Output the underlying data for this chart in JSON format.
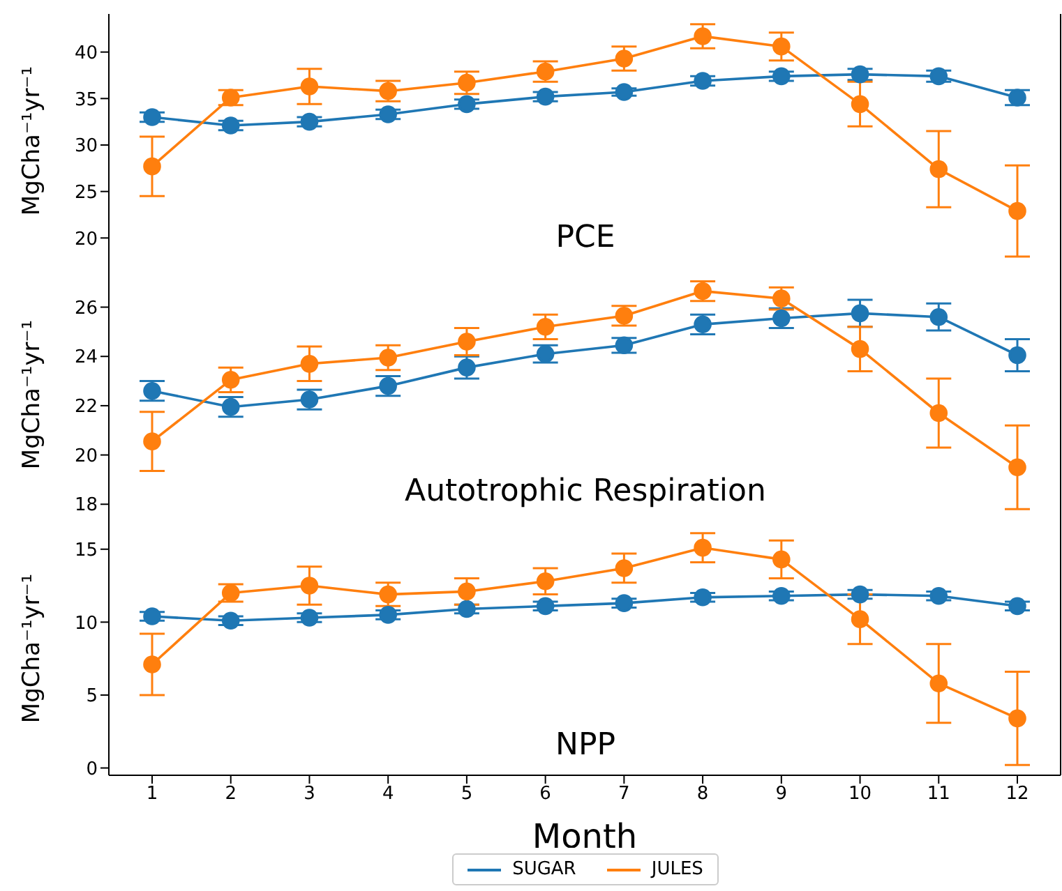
{
  "chart_data": [
    {
      "type": "line",
      "title": "PCE",
      "ylabel": "MgCha⁻¹yr⁻¹",
      "x": [
        1,
        2,
        3,
        4,
        5,
        6,
        7,
        8,
        9,
        10,
        11,
        12
      ],
      "xlim": [
        0.45,
        12.55
      ],
      "xticks": [
        1,
        2,
        3,
        4,
        5,
        6,
        7,
        8,
        9,
        10,
        11,
        12
      ],
      "ylim": [
        16.8,
        44.1
      ],
      "yticks": [
        20,
        25,
        30,
        35,
        40
      ],
      "tick_labels": "y",
      "marker": "circle",
      "line_style": "solid",
      "grid": false,
      "legend": false,
      "series": [
        {
          "color": "#1f77b4",
          "values": [
            33.0,
            32.1,
            32.5,
            33.3,
            34.4,
            35.2,
            35.7,
            36.9,
            37.4,
            37.6,
            37.4,
            35.1
          ],
          "errors": [
            0.5,
            0.5,
            0.5,
            0.5,
            0.5,
            0.5,
            0.4,
            0.5,
            0.5,
            0.6,
            0.6,
            0.8
          ]
        },
        {
          "color": "#ff7f0e",
          "values": [
            27.7,
            35.1,
            36.3,
            35.8,
            36.7,
            37.9,
            39.3,
            41.7,
            40.6,
            34.4,
            27.4,
            22.9
          ],
          "errors": [
            3.2,
            0.8,
            1.9,
            1.1,
            1.2,
            1.1,
            1.3,
            1.3,
            1.5,
            2.4,
            4.1,
            4.9
          ]
        }
      ]
    },
    {
      "type": "line",
      "title": "Autotrophic Respiration",
      "ylabel": "MgCha⁻¹yr⁻¹",
      "x": [
        1,
        2,
        3,
        4,
        5,
        6,
        7,
        8,
        9,
        10,
        11,
        12
      ],
      "xlim": [
        0.45,
        12.55
      ],
      "xticks": [
        1,
        2,
        3,
        4,
        5,
        6,
        7,
        8,
        9,
        10,
        11,
        12
      ],
      "ylim": [
        17.3,
        27.6
      ],
      "yticks": [
        18,
        20,
        22,
        24,
        26
      ],
      "tick_labels": "y",
      "marker": "circle",
      "line_style": "solid",
      "grid": false,
      "legend": false,
      "series": [
        {
          "color": "#1f77b4",
          "values": [
            22.6,
            21.95,
            22.25,
            22.8,
            23.55,
            24.1,
            24.45,
            25.3,
            25.55,
            25.75,
            25.6,
            24.05
          ],
          "errors": [
            0.4,
            0.4,
            0.4,
            0.4,
            0.45,
            0.35,
            0.3,
            0.4,
            0.4,
            0.55,
            0.55,
            0.65
          ]
        },
        {
          "color": "#ff7f0e",
          "values": [
            20.55,
            23.05,
            23.7,
            23.95,
            24.6,
            25.2,
            25.65,
            26.65,
            26.35,
            24.3,
            21.7,
            19.5
          ],
          "errors": [
            1.2,
            0.5,
            0.7,
            0.5,
            0.55,
            0.5,
            0.4,
            0.4,
            0.45,
            0.9,
            1.4,
            1.7
          ]
        }
      ]
    },
    {
      "type": "line",
      "title": "NPP",
      "xlabel": "Month",
      "ylabel": "MgCha⁻¹yr⁻¹",
      "x": [
        1,
        2,
        3,
        4,
        5,
        6,
        7,
        8,
        9,
        10,
        11,
        12
      ],
      "xlim": [
        0.45,
        12.55
      ],
      "xticks": [
        1,
        2,
        3,
        4,
        5,
        6,
        7,
        8,
        9,
        10,
        11,
        12
      ],
      "ylim": [
        -0.5,
        16.9
      ],
      "yticks": [
        0,
        5,
        10,
        15
      ],
      "marker": "circle",
      "line_style": "solid",
      "grid": false,
      "legend": "bottom",
      "series": [
        {
          "name": "SUGAR",
          "color": "#1f77b4",
          "values": [
            10.4,
            10.1,
            10.3,
            10.5,
            10.9,
            11.1,
            11.3,
            11.7,
            11.8,
            11.9,
            11.8,
            11.1
          ],
          "errors": [
            0.3,
            0.3,
            0.3,
            0.3,
            0.3,
            0.3,
            0.3,
            0.3,
            0.3,
            0.3,
            0.3,
            0.3
          ]
        },
        {
          "name": "JULES",
          "color": "#ff7f0e",
          "values": [
            7.1,
            12.0,
            12.5,
            11.9,
            12.1,
            12.8,
            13.7,
            15.1,
            14.3,
            10.2,
            5.8,
            3.4
          ],
          "errors": [
            2.1,
            0.6,
            1.3,
            0.8,
            0.9,
            0.9,
            1.0,
            1.0,
            1.3,
            1.7,
            2.7,
            3.2
          ]
        }
      ]
    }
  ]
}
